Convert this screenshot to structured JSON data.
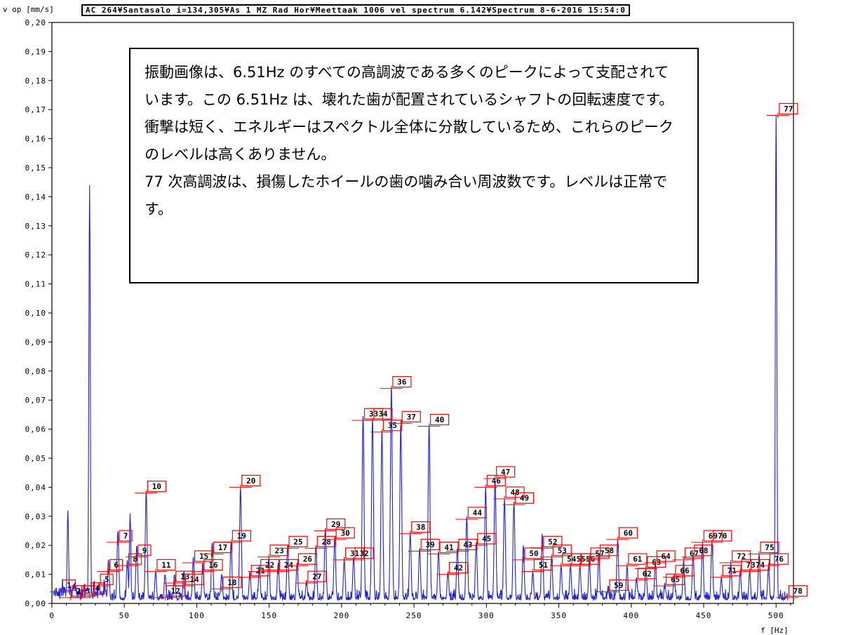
{
  "header": {
    "ylabel": "v op [mm/s]",
    "title": "AC 264¥Santasalo i=134,305¥As 1 MZ Rad Hor¥Meettaak 1006 vel spectrum 6.142¥Spectrum 8-6-2016 15:54:0"
  },
  "annotation": {
    "paragraphs": [
      "振動画像は、6.51Hz のすべての高調波である多くのピークによって支配されています。この 6.51Hz は、壊れた歯が配置されているシャフトの回転速度です。衝撃は短く、エネルギーはスペクトル全体に分散しているため、これらのピークのレベルは高くありません。",
      "77 次高調波は、損傷したホイールの歯の噛み合い周波数です。レベルは正常です。"
    ]
  },
  "colors": {
    "trace": "#1f1fe0",
    "marker": "#ff0000",
    "axis": "#000000"
  },
  "chart_data": {
    "type": "line",
    "xlabel": "f [Hz]",
    "ylabel": "v op [mm/s]",
    "xlim": [
      0,
      512
    ],
    "ylim": [
      0,
      0.2
    ],
    "x_ticks": [
      "0",
      "50",
      "100",
      "150",
      "200",
      "250",
      "300",
      "350",
      "400",
      "450",
      "500"
    ],
    "y_ticks": [
      "0,00",
      "0,01",
      "0,02",
      "0,03",
      "0,04",
      "0,05",
      "0,06",
      "0,07",
      "0,08",
      "0,09",
      "0,10",
      "0,11",
      "0,12",
      "0,13",
      "0,14",
      "0,15",
      "0,16",
      "0,17",
      "0,18",
      "0,19",
      "0,20"
    ],
    "fundamental_hz": 6.51,
    "noise_floor": 0.003,
    "dominant_peaks": [
      {
        "f": 11,
        "v": 0.032
      },
      {
        "f": 26,
        "v": 0.144
      },
      {
        "f": 54,
        "v": 0.031
      },
      {
        "f": 500,
        "v": 0.168
      }
    ],
    "harmonic_markers": [
      {
        "n": 1,
        "v": 0.004
      },
      {
        "n": 2,
        "v": 0.002
      },
      {
        "n": 3,
        "v": 0.002
      },
      {
        "n": 4,
        "v": 0.003
      },
      {
        "n": 5,
        "v": 0.006
      },
      {
        "n": 6,
        "v": 0.011
      },
      {
        "n": 7,
        "v": 0.021
      },
      {
        "n": 8,
        "v": 0.013
      },
      {
        "n": 9,
        "v": 0.016
      },
      {
        "n": 10,
        "v": 0.038
      },
      {
        "n": 11,
        "v": 0.011
      },
      {
        "n": 12,
        "v": 0.002
      },
      {
        "n": 13,
        "v": 0.007
      },
      {
        "n": 14,
        "v": 0.006
      },
      {
        "n": 15,
        "v": 0.014
      },
      {
        "n": 16,
        "v": 0.011
      },
      {
        "n": 17,
        "v": 0.017
      },
      {
        "n": 18,
        "v": 0.005
      },
      {
        "n": 19,
        "v": 0.021
      },
      {
        "n": 20,
        "v": 0.04
      },
      {
        "n": 21,
        "v": 0.009
      },
      {
        "n": 22,
        "v": 0.011
      },
      {
        "n": 23,
        "v": 0.016
      },
      {
        "n": 24,
        "v": 0.011
      },
      {
        "n": 25,
        "v": 0.019
      },
      {
        "n": 26,
        "v": 0.013
      },
      {
        "n": 27,
        "v": 0.007
      },
      {
        "n": 28,
        "v": 0.019
      },
      {
        "n": 29,
        "v": 0.025
      },
      {
        "n": 30,
        "v": 0.022
      },
      {
        "n": 31,
        "v": 0.015
      },
      {
        "n": 32,
        "v": 0.015
      },
      {
        "n": 33,
        "v": 0.063
      },
      {
        "n": 34,
        "v": 0.063
      },
      {
        "n": 35,
        "v": 0.059
      },
      {
        "n": 36,
        "v": 0.074
      },
      {
        "n": 37,
        "v": 0.062
      },
      {
        "n": 38,
        "v": 0.024
      },
      {
        "n": 39,
        "v": 0.018
      },
      {
        "n": 40,
        "v": 0.061
      },
      {
        "n": 41,
        "v": 0.017
      },
      {
        "n": 42,
        "v": 0.01
      },
      {
        "n": 43,
        "v": 0.018
      },
      {
        "n": 44,
        "v": 0.029
      },
      {
        "n": 45,
        "v": 0.02
      },
      {
        "n": 46,
        "v": 0.04
      },
      {
        "n": 47,
        "v": 0.043
      },
      {
        "n": 48,
        "v": 0.036
      },
      {
        "n": 49,
        "v": 0.034
      },
      {
        "n": 50,
        "v": 0.015
      },
      {
        "n": 51,
        "v": 0.011
      },
      {
        "n": 52,
        "v": 0.019
      },
      {
        "n": 53,
        "v": 0.016
      },
      {
        "n": 54,
        "v": 0.013
      },
      {
        "n": 55,
        "v": 0.013
      },
      {
        "n": 56,
        "v": 0.013
      },
      {
        "n": 57,
        "v": 0.015
      },
      {
        "n": 58,
        "v": 0.016
      },
      {
        "n": 59,
        "v": 0.004
      },
      {
        "n": 60,
        "v": 0.022
      },
      {
        "n": 61,
        "v": 0.013
      },
      {
        "n": 62,
        "v": 0.008
      },
      {
        "n": 63,
        "v": 0.012
      },
      {
        "n": 64,
        "v": 0.014
      },
      {
        "n": 65,
        "v": 0.006
      },
      {
        "n": 66,
        "v": 0.009
      },
      {
        "n": 67,
        "v": 0.015
      },
      {
        "n": 68,
        "v": 0.016
      },
      {
        "n": 69,
        "v": 0.021
      },
      {
        "n": 70,
        "v": 0.021
      },
      {
        "n": 71,
        "v": 0.009
      },
      {
        "n": 72,
        "v": 0.014
      },
      {
        "n": 73,
        "v": 0.011
      },
      {
        "n": 74,
        "v": 0.011
      },
      {
        "n": 75,
        "v": 0.017
      },
      {
        "n": 76,
        "v": 0.013
      },
      {
        "n": 77,
        "v": 0.168
      },
      {
        "n": 78,
        "v": 0.002
      }
    ],
    "harmonic_peaks": [
      {
        "n": 4,
        "v": 0.005
      },
      {
        "n": 5,
        "v": 0.007
      },
      {
        "n": 6,
        "v": 0.015
      },
      {
        "n": 7,
        "v": 0.025
      },
      {
        "n": 8,
        "v": 0.015
      },
      {
        "n": 9,
        "v": 0.02
      },
      {
        "n": 10,
        "v": 0.039
      },
      {
        "n": 11,
        "v": 0.011
      },
      {
        "n": 12,
        "v": 0.01
      },
      {
        "n": 13,
        "v": 0.01
      },
      {
        "n": 14,
        "v": 0.011
      },
      {
        "n": 15,
        "v": 0.016
      },
      {
        "n": 16,
        "v": 0.014
      },
      {
        "n": 17,
        "v": 0.021
      },
      {
        "n": 18,
        "v": 0.01
      },
      {
        "n": 19,
        "v": 0.021
      },
      {
        "n": 20,
        "v": 0.04
      },
      {
        "n": 21,
        "v": 0.011
      },
      {
        "n": 22,
        "v": 0.013
      },
      {
        "n": 23,
        "v": 0.016
      },
      {
        "n": 24,
        "v": 0.014
      },
      {
        "n": 25,
        "v": 0.02
      },
      {
        "n": 26,
        "v": 0.014
      },
      {
        "n": 27,
        "v": 0.008
      },
      {
        "n": 28,
        "v": 0.02
      },
      {
        "n": 29,
        "v": 0.026
      },
      {
        "n": 30,
        "v": 0.023
      },
      {
        "n": 31,
        "v": 0.015
      },
      {
        "n": 32,
        "v": 0.016
      },
      {
        "n": 33,
        "v": 0.065
      },
      {
        "n": 34,
        "v": 0.064
      },
      {
        "n": 35,
        "v": 0.06
      },
      {
        "n": 36,
        "v": 0.075
      },
      {
        "n": 37,
        "v": 0.062
      },
      {
        "n": 38,
        "v": 0.024
      },
      {
        "n": 39,
        "v": 0.019
      },
      {
        "n": 40,
        "v": 0.062
      },
      {
        "n": 41,
        "v": 0.018
      },
      {
        "n": 42,
        "v": 0.011
      },
      {
        "n": 43,
        "v": 0.019
      },
      {
        "n": 44,
        "v": 0.03
      },
      {
        "n": 45,
        "v": 0.021
      },
      {
        "n": 46,
        "v": 0.04
      },
      {
        "n": 47,
        "v": 0.043
      },
      {
        "n": 48,
        "v": 0.036
      },
      {
        "n": 49,
        "v": 0.035
      },
      {
        "n": 50,
        "v": 0.02
      },
      {
        "n": 51,
        "v": 0.011
      },
      {
        "n": 52,
        "v": 0.024
      },
      {
        "n": 53,
        "v": 0.016
      },
      {
        "n": 54,
        "v": 0.013
      },
      {
        "n": 55,
        "v": 0.013
      },
      {
        "n": 56,
        "v": 0.013
      },
      {
        "n": 57,
        "v": 0.015
      },
      {
        "n": 58,
        "v": 0.017
      },
      {
        "n": 59,
        "v": 0.006
      },
      {
        "n": 60,
        "v": 0.022
      },
      {
        "n": 61,
        "v": 0.013
      },
      {
        "n": 62,
        "v": 0.009
      },
      {
        "n": 63,
        "v": 0.012
      },
      {
        "n": 64,
        "v": 0.014
      },
      {
        "n": 65,
        "v": 0.007
      },
      {
        "n": 66,
        "v": 0.01
      },
      {
        "n": 67,
        "v": 0.015
      },
      {
        "n": 68,
        "v": 0.017
      },
      {
        "n": 69,
        "v": 0.021
      },
      {
        "n": 70,
        "v": 0.021
      },
      {
        "n": 71,
        "v": 0.009
      },
      {
        "n": 72,
        "v": 0.014
      },
      {
        "n": 73,
        "v": 0.011
      },
      {
        "n": 74,
        "v": 0.011
      },
      {
        "n": 75,
        "v": 0.017
      },
      {
        "n": 76,
        "v": 0.013
      }
    ]
  }
}
